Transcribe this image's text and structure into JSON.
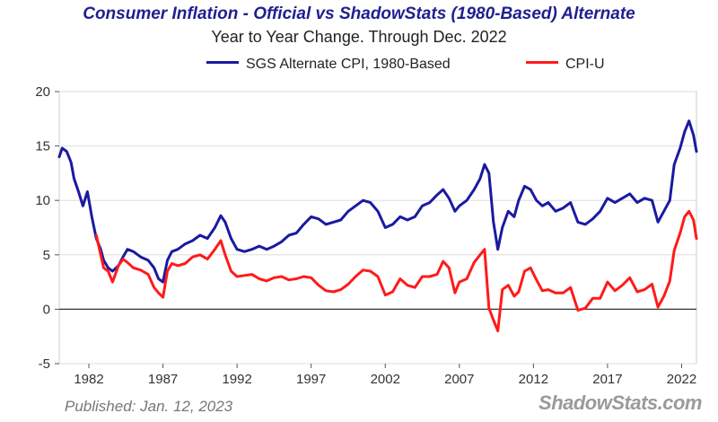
{
  "chart_data": {
    "type": "line",
    "title": "Consumer Inflation - Official vs ShadowStats (1980-Based) Alternate",
    "subtitle": "Year to Year Change. Through Dec. 2022",
    "xlabel": "",
    "ylabel": "",
    "xlim": [
      1980.0,
      2023.0
    ],
    "ylim": [
      -5,
      20
    ],
    "y_ticks": [
      -5,
      0,
      5,
      10,
      15,
      20
    ],
    "x_ticks": [
      1982,
      1987,
      1992,
      1997,
      2002,
      2007,
      2012,
      2017,
      2022
    ],
    "grid": "horizontal",
    "legend": "top",
    "series": [
      {
        "name": "SGS Alternate CPI, 1980-Based",
        "color": "#1a1aa0",
        "points": [
          [
            1980.0,
            14.0
          ],
          [
            1980.2,
            14.8
          ],
          [
            1980.5,
            14.5
          ],
          [
            1980.8,
            13.5
          ],
          [
            1981.0,
            12.0
          ],
          [
            1981.3,
            10.8
          ],
          [
            1981.6,
            9.5
          ],
          [
            1981.9,
            10.8
          ],
          [
            1982.2,
            8.5
          ],
          [
            1982.5,
            6.5
          ],
          [
            1982.8,
            5.5
          ],
          [
            1983.0,
            4.5
          ],
          [
            1983.3,
            3.8
          ],
          [
            1983.6,
            3.5
          ],
          [
            1984.0,
            4.0
          ],
          [
            1984.3,
            4.8
          ],
          [
            1984.6,
            5.5
          ],
          [
            1985.0,
            5.3
          ],
          [
            1985.5,
            4.8
          ],
          [
            1986.0,
            4.5
          ],
          [
            1986.4,
            3.8
          ],
          [
            1986.7,
            2.8
          ],
          [
            1987.0,
            2.5
          ],
          [
            1987.3,
            4.5
          ],
          [
            1987.6,
            5.3
          ],
          [
            1988.0,
            5.5
          ],
          [
            1988.5,
            6.0
          ],
          [
            1989.0,
            6.3
          ],
          [
            1989.5,
            6.8
          ],
          [
            1990.0,
            6.5
          ],
          [
            1990.5,
            7.5
          ],
          [
            1990.9,
            8.6
          ],
          [
            1991.2,
            8.0
          ],
          [
            1991.6,
            6.5
          ],
          [
            1992.0,
            5.5
          ],
          [
            1992.5,
            5.3
          ],
          [
            1993.0,
            5.5
          ],
          [
            1993.5,
            5.8
          ],
          [
            1994.0,
            5.5
          ],
          [
            1994.5,
            5.8
          ],
          [
            1995.0,
            6.2
          ],
          [
            1995.5,
            6.8
          ],
          [
            1996.0,
            7.0
          ],
          [
            1996.5,
            7.8
          ],
          [
            1997.0,
            8.5
          ],
          [
            1997.5,
            8.3
          ],
          [
            1998.0,
            7.8
          ],
          [
            1998.5,
            8.0
          ],
          [
            1999.0,
            8.2
          ],
          [
            1999.5,
            9.0
          ],
          [
            2000.0,
            9.5
          ],
          [
            2000.5,
            10.0
          ],
          [
            2001.0,
            9.8
          ],
          [
            2001.5,
            9.0
          ],
          [
            2002.0,
            7.5
          ],
          [
            2002.5,
            7.8
          ],
          [
            2003.0,
            8.5
          ],
          [
            2003.5,
            8.2
          ],
          [
            2004.0,
            8.5
          ],
          [
            2004.5,
            9.5
          ],
          [
            2005.0,
            9.8
          ],
          [
            2005.5,
            10.5
          ],
          [
            2005.9,
            11.0
          ],
          [
            2006.3,
            10.2
          ],
          [
            2006.7,
            9.0
          ],
          [
            2007.0,
            9.5
          ],
          [
            2007.5,
            10.0
          ],
          [
            2008.0,
            11.0
          ],
          [
            2008.4,
            12.0
          ],
          [
            2008.7,
            13.3
          ],
          [
            2009.0,
            12.5
          ],
          [
            2009.3,
            8.0
          ],
          [
            2009.6,
            5.5
          ],
          [
            2009.9,
            7.5
          ],
          [
            2010.3,
            9.0
          ],
          [
            2010.7,
            8.5
          ],
          [
            2011.0,
            10.0
          ],
          [
            2011.4,
            11.3
          ],
          [
            2011.8,
            11.0
          ],
          [
            2012.2,
            10.0
          ],
          [
            2012.6,
            9.5
          ],
          [
            2013.0,
            9.8
          ],
          [
            2013.5,
            9.0
          ],
          [
            2014.0,
            9.3
          ],
          [
            2014.5,
            9.8
          ],
          [
            2015.0,
            8.0
          ],
          [
            2015.5,
            7.8
          ],
          [
            2016.0,
            8.3
          ],
          [
            2016.5,
            9.0
          ],
          [
            2017.0,
            10.2
          ],
          [
            2017.5,
            9.8
          ],
          [
            2018.0,
            10.2
          ],
          [
            2018.5,
            10.6
          ],
          [
            2019.0,
            9.8
          ],
          [
            2019.5,
            10.2
          ],
          [
            2020.0,
            10.0
          ],
          [
            2020.4,
            8.0
          ],
          [
            2020.8,
            9.0
          ],
          [
            2021.2,
            10.0
          ],
          [
            2021.5,
            13.3
          ],
          [
            2021.9,
            14.8
          ],
          [
            2022.2,
            16.3
          ],
          [
            2022.5,
            17.3
          ],
          [
            2022.8,
            16.0
          ],
          [
            2023.0,
            14.5
          ]
        ]
      },
      {
        "name": "CPI-U",
        "color": "#ff1a1a",
        "points": [
          [
            1982.5,
            6.8
          ],
          [
            1982.8,
            5.0
          ],
          [
            1983.0,
            3.8
          ],
          [
            1983.3,
            3.5
          ],
          [
            1983.6,
            2.5
          ],
          [
            1984.0,
            4.0
          ],
          [
            1984.3,
            4.6
          ],
          [
            1984.6,
            4.3
          ],
          [
            1985.0,
            3.8
          ],
          [
            1985.5,
            3.6
          ],
          [
            1986.0,
            3.2
          ],
          [
            1986.4,
            2.0
          ],
          [
            1986.7,
            1.5
          ],
          [
            1987.0,
            1.1
          ],
          [
            1987.3,
            3.5
          ],
          [
            1987.6,
            4.2
          ],
          [
            1988.0,
            4.0
          ],
          [
            1988.5,
            4.2
          ],
          [
            1989.0,
            4.8
          ],
          [
            1989.5,
            5.0
          ],
          [
            1990.0,
            4.6
          ],
          [
            1990.5,
            5.5
          ],
          [
            1990.9,
            6.3
          ],
          [
            1991.2,
            5.0
          ],
          [
            1991.6,
            3.5
          ],
          [
            1992.0,
            3.0
          ],
          [
            1992.5,
            3.1
          ],
          [
            1993.0,
            3.2
          ],
          [
            1993.5,
            2.8
          ],
          [
            1994.0,
            2.6
          ],
          [
            1994.5,
            2.9
          ],
          [
            1995.0,
            3.0
          ],
          [
            1995.5,
            2.7
          ],
          [
            1996.0,
            2.8
          ],
          [
            1996.5,
            3.0
          ],
          [
            1997.0,
            2.9
          ],
          [
            1997.5,
            2.2
          ],
          [
            1998.0,
            1.7
          ],
          [
            1998.5,
            1.6
          ],
          [
            1999.0,
            1.8
          ],
          [
            1999.5,
            2.3
          ],
          [
            2000.0,
            3.0
          ],
          [
            2000.5,
            3.6
          ],
          [
            2001.0,
            3.5
          ],
          [
            2001.5,
            3.0
          ],
          [
            2002.0,
            1.3
          ],
          [
            2002.5,
            1.6
          ],
          [
            2003.0,
            2.8
          ],
          [
            2003.5,
            2.2
          ],
          [
            2004.0,
            2.0
          ],
          [
            2004.5,
            3.0
          ],
          [
            2005.0,
            3.0
          ],
          [
            2005.5,
            3.2
          ],
          [
            2005.9,
            4.4
          ],
          [
            2006.3,
            3.8
          ],
          [
            2006.7,
            1.5
          ],
          [
            2007.0,
            2.5
          ],
          [
            2007.5,
            2.8
          ],
          [
            2008.0,
            4.3
          ],
          [
            2008.4,
            5.0
          ],
          [
            2008.7,
            5.5
          ],
          [
            2009.0,
            0.1
          ],
          [
            2009.3,
            -1.0
          ],
          [
            2009.6,
            -2.0
          ],
          [
            2009.9,
            1.8
          ],
          [
            2010.3,
            2.2
          ],
          [
            2010.7,
            1.2
          ],
          [
            2011.0,
            1.6
          ],
          [
            2011.4,
            3.5
          ],
          [
            2011.8,
            3.8
          ],
          [
            2012.2,
            2.7
          ],
          [
            2012.6,
            1.7
          ],
          [
            2013.0,
            1.8
          ],
          [
            2013.5,
            1.5
          ],
          [
            2014.0,
            1.5
          ],
          [
            2014.5,
            2.0
          ],
          [
            2015.0,
            -0.1
          ],
          [
            2015.5,
            0.1
          ],
          [
            2016.0,
            1.0
          ],
          [
            2016.5,
            1.0
          ],
          [
            2017.0,
            2.5
          ],
          [
            2017.5,
            1.7
          ],
          [
            2018.0,
            2.2
          ],
          [
            2018.5,
            2.9
          ],
          [
            2019.0,
            1.6
          ],
          [
            2019.5,
            1.8
          ],
          [
            2020.0,
            2.3
          ],
          [
            2020.4,
            0.2
          ],
          [
            2020.8,
            1.2
          ],
          [
            2021.2,
            2.6
          ],
          [
            2021.5,
            5.4
          ],
          [
            2021.9,
            7.0
          ],
          [
            2022.2,
            8.5
          ],
          [
            2022.5,
            9.0
          ],
          [
            2022.8,
            8.2
          ],
          [
            2023.0,
            6.5
          ]
        ]
      }
    ]
  },
  "footer": {
    "published": "Published: Jan. 12, 2023",
    "brand": "ShadowStats.com"
  }
}
